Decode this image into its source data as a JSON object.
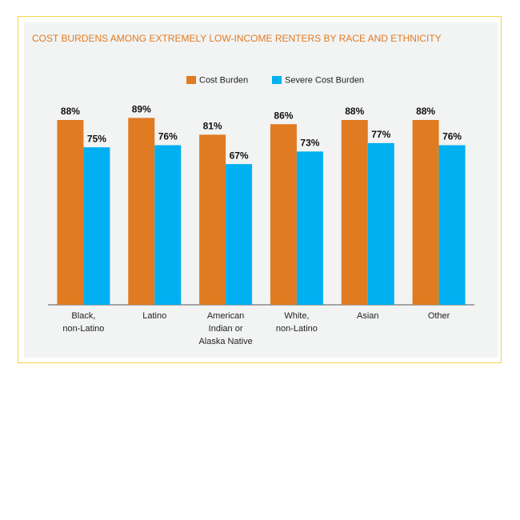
{
  "chart_data": {
    "type": "bar",
    "title": "COST BURDENS AMONG EXTREMELY LOW-INCOME RENTERS BY RACE AND ETHNICITY",
    "categories": [
      "Black,\nnon-Latino",
      "Latino",
      "American\nIndian or\nAlaska Native",
      "White,\nnon-Latino",
      "Asian",
      "Other"
    ],
    "series": [
      {
        "name": "Cost Burden",
        "color": "#e07b22",
        "values": [
          88,
          89,
          81,
          86,
          88,
          88
        ],
        "value_labels": [
          "88%",
          "89%",
          "81%",
          "86%",
          "88%",
          "88%"
        ]
      },
      {
        "name": "Severe Cost Burden",
        "color": "#00b0f0",
        "values": [
          75,
          76,
          67,
          73,
          77,
          76
        ],
        "value_labels": [
          "75%",
          "76%",
          "67%",
          "73%",
          "77%",
          "76%"
        ]
      }
    ],
    "ylim": [
      0,
      100
    ]
  }
}
